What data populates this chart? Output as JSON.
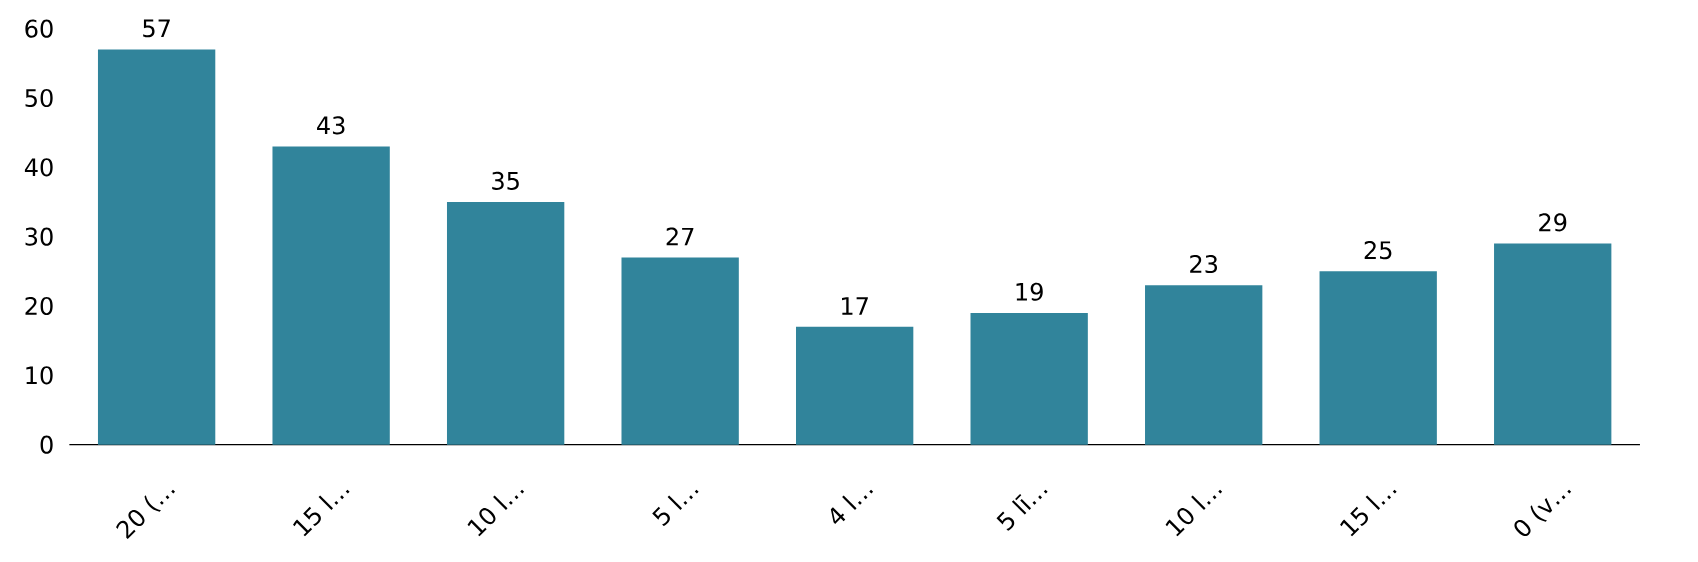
{
  "chart_data": {
    "type": "bar",
    "categories": [
      "20 (…",
      "15 l…",
      "10 l…",
      "5 l…",
      "4 l…",
      "5 lī…",
      "10 l…",
      "15 l…",
      "0 (v…"
    ],
    "values": [
      57,
      43,
      35,
      27,
      17,
      19,
      23,
      25,
      29
    ],
    "color": "#31849b",
    "ylim": [
      0,
      60
    ],
    "yticks": [
      0,
      10,
      20,
      30,
      40,
      50,
      60
    ],
    "data_labels": true
  }
}
